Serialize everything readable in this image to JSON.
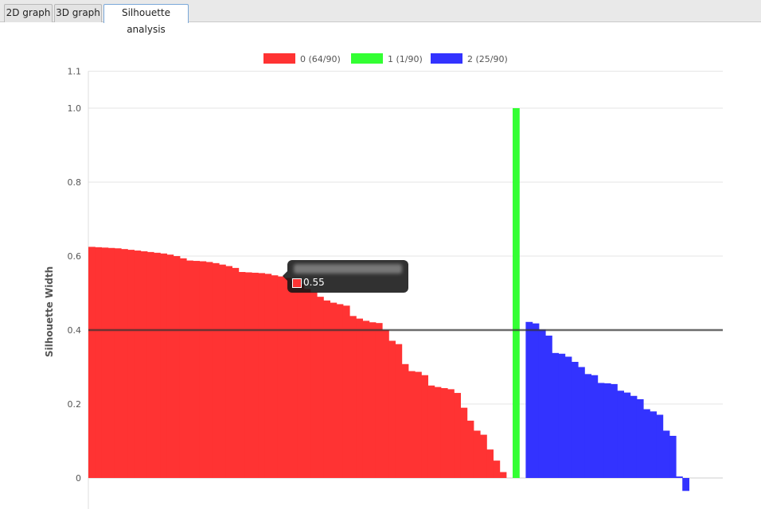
{
  "tabs": [
    {
      "label": "2D graph",
      "active": false
    },
    {
      "label": "3D graph",
      "active": false
    },
    {
      "label": "Silhouette analysis",
      "active": true
    }
  ],
  "tooltip": {
    "value": "0.55",
    "swatch_color": "#ff3333"
  },
  "chart_data": {
    "type": "bar",
    "ylabel": "Silhouette Width",
    "ylim": [
      -0.04,
      1.1
    ],
    "yticks": [
      {
        "v": 0,
        "label": "0"
      },
      {
        "v": 0.2,
        "label": "0.2"
      },
      {
        "v": 0.4,
        "label": "0.4"
      },
      {
        "v": 0.6,
        "label": "0.6"
      },
      {
        "v": 0.8,
        "label": "0.8"
      },
      {
        "v": 1.0,
        "label": "1.0"
      },
      {
        "v": 1.1,
        "label": "1.1"
      }
    ],
    "grid": true,
    "legend_position": "top-center",
    "reference_line": 0.4,
    "series": [
      {
        "name": "0 (64/90)",
        "color": "#ff3333",
        "values": [
          0.625,
          0.624,
          0.623,
          0.622,
          0.621,
          0.619,
          0.617,
          0.615,
          0.613,
          0.611,
          0.609,
          0.607,
          0.604,
          0.6,
          0.594,
          0.588,
          0.587,
          0.586,
          0.584,
          0.581,
          0.577,
          0.573,
          0.568,
          0.557,
          0.556,
          0.555,
          0.554,
          0.552,
          0.548,
          0.545,
          0.541,
          0.534,
          0.524,
          0.511,
          0.502,
          0.49,
          0.48,
          0.474,
          0.47,
          0.466,
          0.438,
          0.431,
          0.425,
          0.421,
          0.419,
          0.4,
          0.371,
          0.362,
          0.308,
          0.289,
          0.287,
          0.278,
          0.25,
          0.246,
          0.243,
          0.24,
          0.23,
          0.19,
          0.155,
          0.128,
          0.117,
          0.077,
          0.047,
          0.016
        ]
      },
      {
        "name": "1 (1/90)",
        "color": "#33ff33",
        "values": [
          1.0
        ]
      },
      {
        "name": "2 (25/90)",
        "color": "#3333ff",
        "values": [
          0.422,
          0.418,
          0.401,
          0.385,
          0.338,
          0.336,
          0.328,
          0.314,
          0.3,
          0.281,
          0.278,
          0.257,
          0.256,
          0.254,
          0.236,
          0.231,
          0.222,
          0.213,
          0.186,
          0.18,
          0.171,
          0.128,
          0.114,
          0.004,
          -0.035
        ]
      }
    ]
  }
}
